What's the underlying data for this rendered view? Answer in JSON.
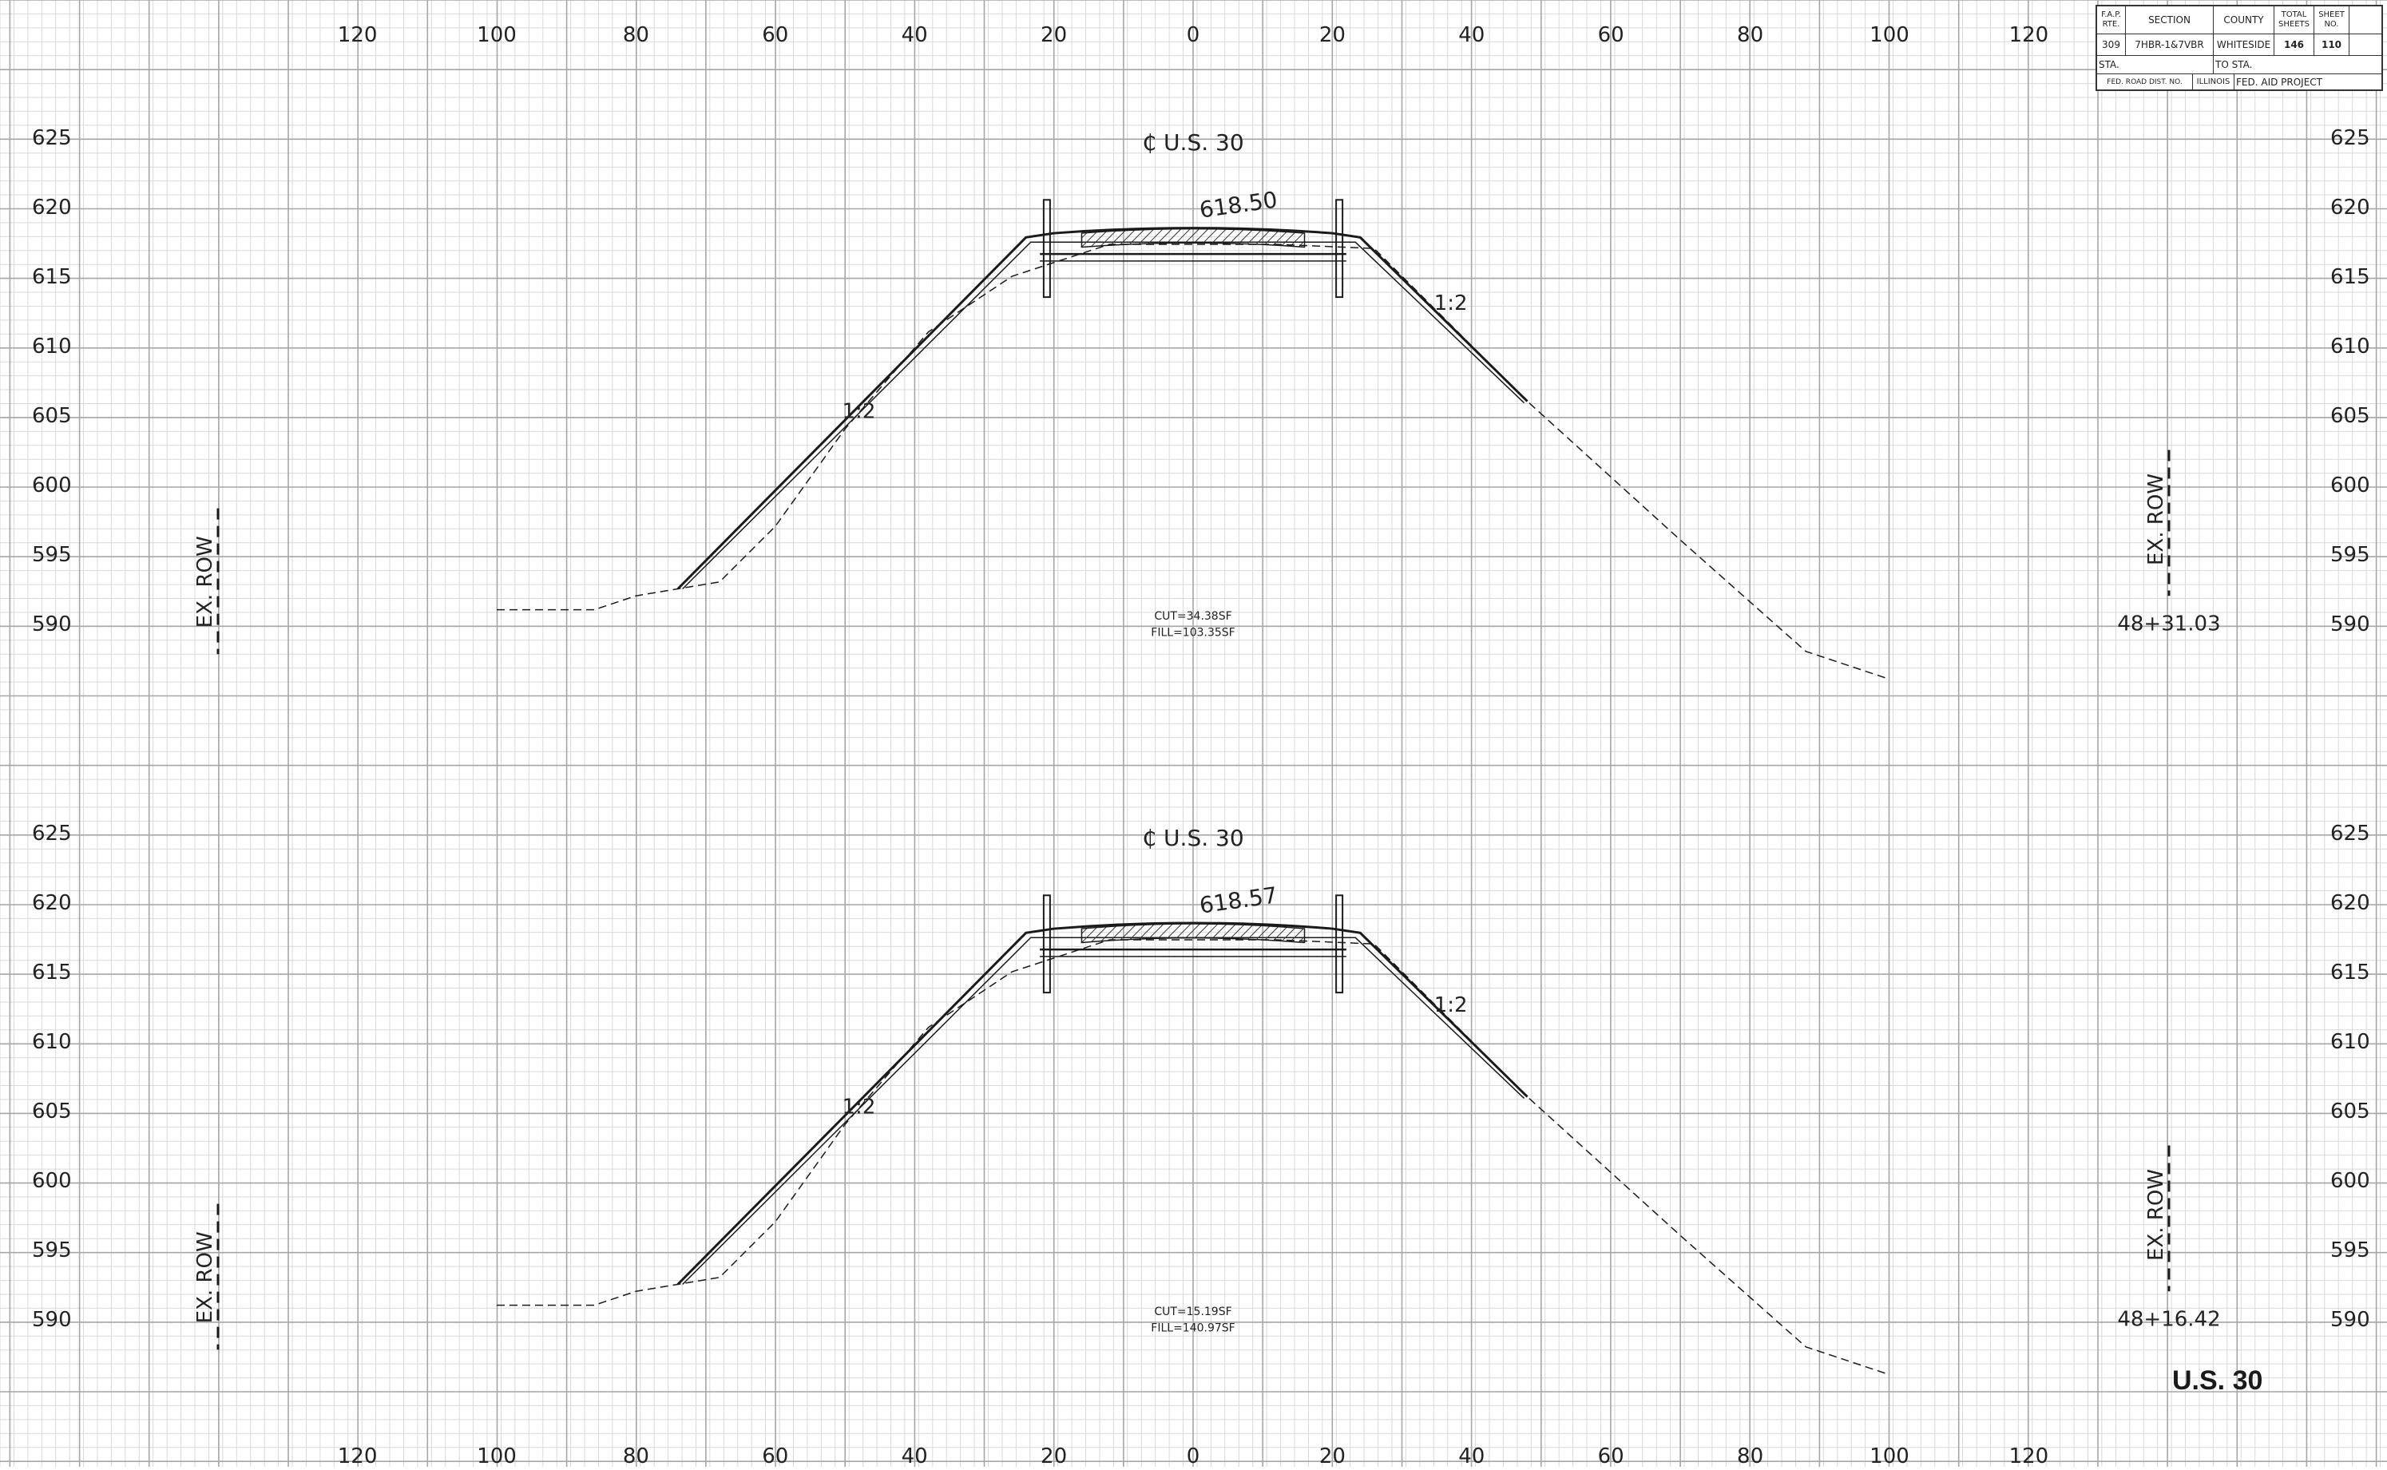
{
  "title_block": {
    "rte_label": "F.A.P. RTE.",
    "section_label": "SECTION",
    "county_label": "COUNTY",
    "total_sheets_label": "TOTAL SHEETS",
    "sheet_no_label": "SHEET NO.",
    "rte_value": "309",
    "section_value": "7HBR-1&7VBR",
    "county_value": "WHITESIDE",
    "total_sheets_value": "146",
    "sheet_no_value": "110",
    "sta_label": "STA.",
    "to_sta_label": "TO STA.",
    "fed_dist_label": "FED. ROAD DIST. NO.",
    "state_label": "ILLINOIS",
    "fed_aid_label": "FED. AID PROJECT"
  },
  "sheet_title": "U.S. 30",
  "x_axis_ticks": [
    "120",
    "100",
    "80",
    "60",
    "40",
    "20",
    "0",
    "20",
    "40",
    "60",
    "80",
    "100",
    "120"
  ],
  "sections": [
    {
      "centerline_label": "₵ U.S. 30",
      "elevation_label": "618.50",
      "left_slope": "1:2",
      "right_slope": "1:2",
      "cut": "CUT=34.38SF",
      "fill": "FILL=103.35SF",
      "station": "48+31.03",
      "row_left": "EX. ROW",
      "row_right": "EX. ROW",
      "elevations": [
        "625",
        "620",
        "615",
        "610",
        "605",
        "600",
        "595",
        "590"
      ]
    },
    {
      "centerline_label": "₵ U.S. 30",
      "elevation_label": "618.57",
      "left_slope": "1:2",
      "right_slope": "1:2",
      "cut": "CUT=15.19SF",
      "fill": "FILL=140.97SF",
      "station": "48+16.42",
      "row_left": "EX. ROW",
      "row_right": "EX. ROW",
      "elevations": [
        "625",
        "620",
        "615",
        "610",
        "605",
        "600",
        "595",
        "590"
      ]
    }
  ],
  "colors": {
    "grid_minor": "#d9d9d9",
    "grid_major": "#a6a6a6",
    "ink": "#1a1a1a"
  }
}
